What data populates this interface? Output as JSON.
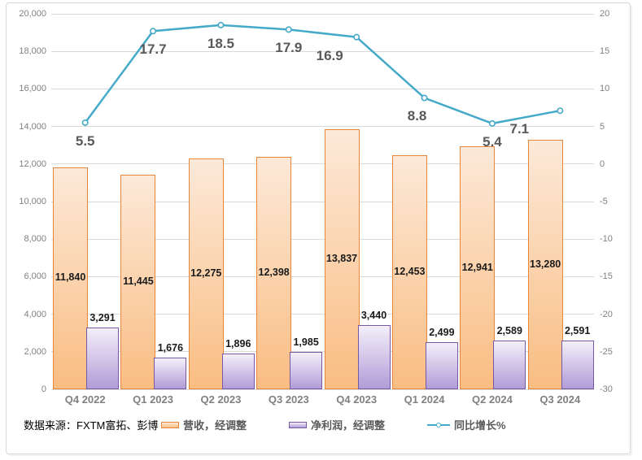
{
  "source_note": "数据来源：FXTM富拓、彭博",
  "chart_data": {
    "type": "bar",
    "subtype": "combo-bar-line",
    "title": "",
    "categories": [
      "Q4 2022",
      "Q1 2023",
      "Q2 2023",
      "Q3 2023",
      "Q4 2023",
      "Q1 2024",
      "Q2 2024",
      "Q3 2024"
    ],
    "series": [
      {
        "name": "营收，经调整",
        "chart": "bar",
        "axis": "left",
        "values": [
          11840,
          11445,
          12275,
          12398,
          13837,
          12453,
          12941,
          13280
        ],
        "labels": [
          "11,840",
          "11,445",
          "12,275",
          "12,398",
          "13,837",
          "12,453",
          "12,941",
          "13,280"
        ],
        "label_position": "inside-center",
        "fill_top": "#FCE9D9",
        "fill_bottom": "#FABD82",
        "border": "#E4863B"
      },
      {
        "name": "净利润，经调整",
        "chart": "bar",
        "axis": "left",
        "values": [
          3291,
          1676,
          1896,
          1985,
          3440,
          2499,
          2589,
          2591
        ],
        "labels": [
          "3,291",
          "1,676",
          "1,896",
          "1,985",
          "3,440",
          "2,499",
          "2,589",
          "2,591"
        ],
        "label_position": "outside-end",
        "fill_top": "#F3EFFA",
        "fill_bottom": "#B29CD7",
        "border": "#7659A4"
      },
      {
        "name": "同比增长%",
        "chart": "line",
        "axis": "right",
        "values": [
          5.5,
          17.7,
          18.5,
          17.9,
          16.9,
          8.8,
          5.4,
          7.1
        ],
        "labels": [
          "5.5",
          "17.7",
          "18.5",
          "17.9",
          "16.9",
          "8.8",
          "5.4",
          "7.1"
        ],
        "label_position": "below",
        "color": "#45AAC8",
        "marker": "circle-open"
      }
    ],
    "left_axis": {
      "min": 0,
      "max": 20000,
      "step": 2000,
      "tick_labels": [
        "0",
        "2,000",
        "4,000",
        "6,000",
        "8,000",
        "10,000",
        "12,000",
        "14,000",
        "16,000",
        "18,000",
        "20,000"
      ]
    },
    "right_axis": {
      "min": -30,
      "max": 20,
      "step": 5,
      "tick_labels": [
        "-30",
        "-25",
        "-20",
        "-15",
        "-10",
        "-5",
        "0",
        "5",
        "10",
        "15",
        "20"
      ]
    },
    "grid": true,
    "legend_position": "bottom",
    "colors": {
      "gridline": "#D9D9D9",
      "axis_text": "#808080",
      "bar_label_text": "#1A1A1A",
      "line_label_text": "#595959",
      "legend_text": "#595959"
    }
  }
}
